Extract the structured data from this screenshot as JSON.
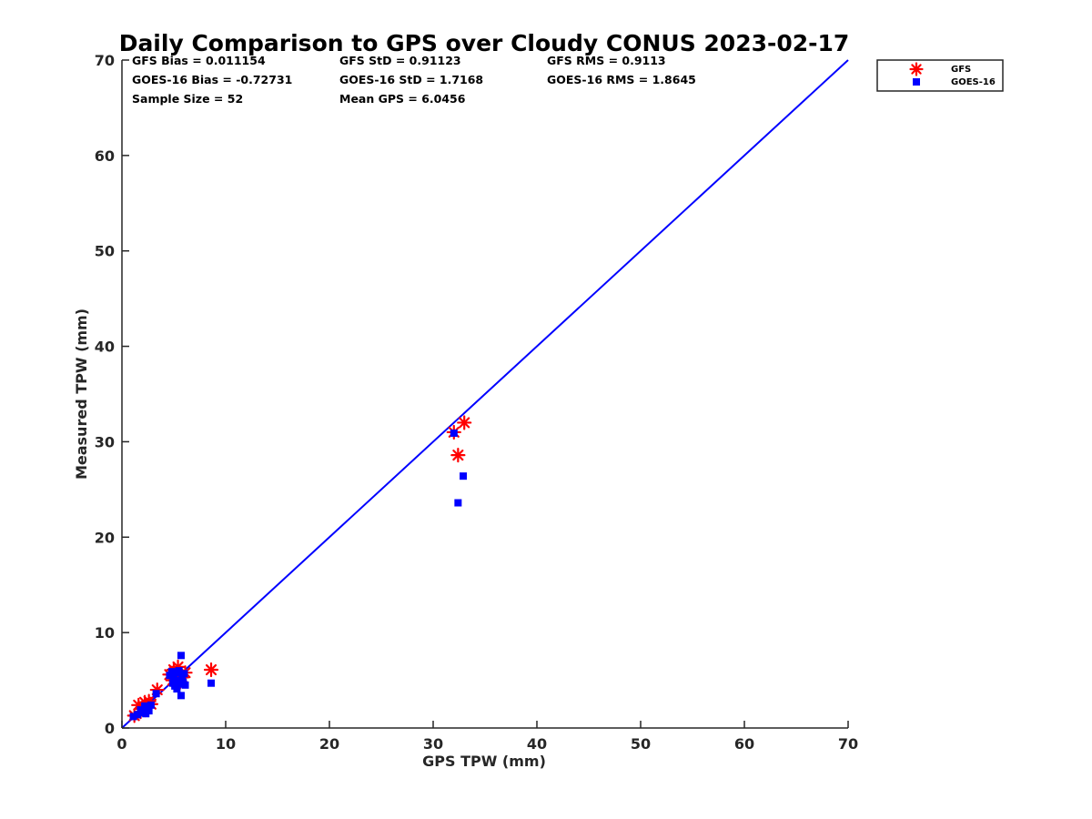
{
  "chart_data": {
    "type": "scatter",
    "title": "Daily Comparison to GPS over Cloudy CONUS 2023-02-17",
    "xlabel": "GPS TPW (mm)",
    "ylabel": "Measured TPW (mm)",
    "xlim": [
      0,
      70
    ],
    "ylim": [
      0,
      70
    ],
    "xticks": [
      "0",
      "10",
      "20",
      "30",
      "40",
      "50",
      "60",
      "70"
    ],
    "yticks": [
      "0",
      "10",
      "20",
      "30",
      "40",
      "50",
      "60",
      "70"
    ],
    "grid": false,
    "legend_position": "top-right outside",
    "stats": [
      {
        "label": "GFS Bias = 0.011154"
      },
      {
        "label": "GFS StD = 0.91123"
      },
      {
        "label": "GFS RMS = 0.9113"
      },
      {
        "label": "GOES-16 Bias = -0.72731"
      },
      {
        "label": "GOES-16 StD = 1.7168"
      },
      {
        "label": "GOES-16 RMS = 1.8645"
      },
      {
        "label": "Sample Size = 52"
      },
      {
        "label": "Mean GPS = 6.0456"
      }
    ],
    "reference_line": {
      "x": [
        0,
        70
      ],
      "y": [
        0,
        70
      ],
      "color": "#0000ff"
    },
    "series": [
      {
        "name": "GFS",
        "marker": "asterisk",
        "color": "#ff0000",
        "points": [
          [
            1.2,
            1.3
          ],
          [
            1.6,
            2.4
          ],
          [
            1.8,
            1.7
          ],
          [
            2.0,
            2.0
          ],
          [
            2.2,
            2.7
          ],
          [
            2.4,
            2.2
          ],
          [
            2.6,
            2.8
          ],
          [
            2.8,
            2.5
          ],
          [
            3.4,
            4.0
          ],
          [
            4.6,
            5.6
          ],
          [
            4.9,
            5.0
          ],
          [
            5.0,
            6.1
          ],
          [
            5.2,
            5.4
          ],
          [
            5.4,
            6.4
          ],
          [
            5.6,
            4.8
          ],
          [
            5.8,
            5.3
          ],
          [
            6.1,
            5.8
          ],
          [
            8.6,
            6.1
          ],
          [
            32.0,
            31.0
          ],
          [
            32.4,
            28.6
          ],
          [
            33.0,
            32.0
          ]
        ]
      },
      {
        "name": "GOES-16",
        "marker": "square",
        "color": "#0000ff",
        "points": [
          [
            1.1,
            1.2
          ],
          [
            1.5,
            1.4
          ],
          [
            1.8,
            1.9
          ],
          [
            2.0,
            1.6
          ],
          [
            2.2,
            2.3
          ],
          [
            2.3,
            1.5
          ],
          [
            2.4,
            2.0
          ],
          [
            2.6,
            1.8
          ],
          [
            2.8,
            2.4
          ],
          [
            3.3,
            3.6
          ],
          [
            4.6,
            5.5
          ],
          [
            4.8,
            5.9
          ],
          [
            4.9,
            4.7
          ],
          [
            5.0,
            5.2
          ],
          [
            5.1,
            4.4
          ],
          [
            5.2,
            5.8
          ],
          [
            5.3,
            4.1
          ],
          [
            5.4,
            5.0
          ],
          [
            5.5,
            6.0
          ],
          [
            5.6,
            4.6
          ],
          [
            5.7,
            7.6
          ],
          [
            5.7,
            3.4
          ],
          [
            5.8,
            5.4
          ],
          [
            5.9,
            4.8
          ],
          [
            6.0,
            5.7
          ],
          [
            6.1,
            4.5
          ],
          [
            8.6,
            4.7
          ],
          [
            32.0,
            30.9
          ],
          [
            32.4,
            23.6
          ],
          [
            32.9,
            26.4
          ]
        ]
      }
    ]
  }
}
